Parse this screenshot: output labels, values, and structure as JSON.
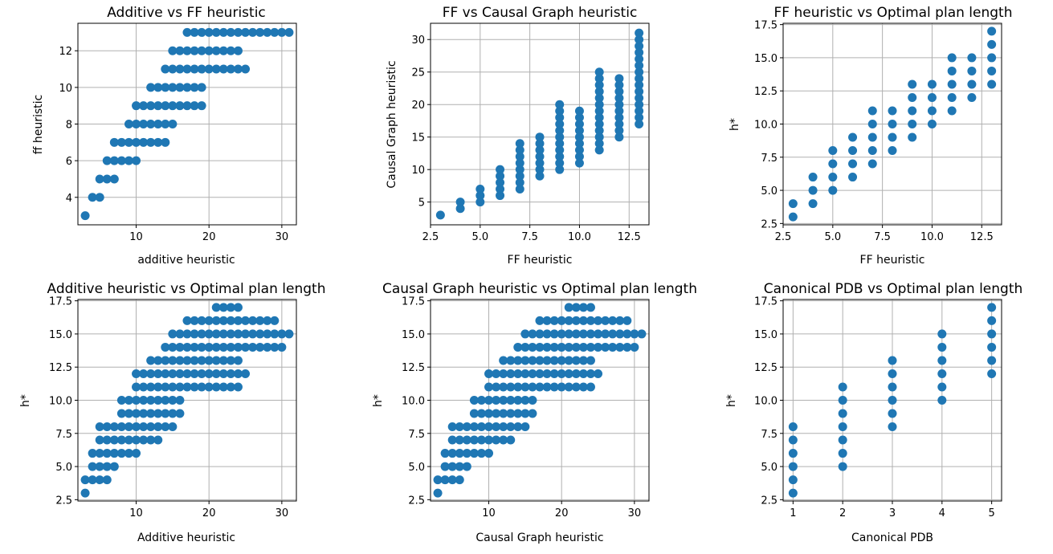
{
  "figure": {
    "marker_color": "#1f77b4",
    "grid_color": "#b0b0b0",
    "grid": true
  },
  "chart_data": [
    {
      "type": "scatter",
      "title": "Additive vs FF heuristic",
      "xlabel": "additive heuristic",
      "ylabel": "ff heuristic",
      "xlim": [
        2,
        32
      ],
      "ylim": [
        2.5,
        13.5
      ],
      "xticks": [
        10,
        20,
        30
      ],
      "yticks": [
        4,
        6,
        8,
        10,
        12
      ],
      "points_by_y": [
        {
          "y": 3,
          "x_min": 3,
          "x_max": 3
        },
        {
          "y": 4,
          "x_min": 4,
          "x_max": 5
        },
        {
          "y": 5,
          "x_min": 5,
          "x_max": 7
        },
        {
          "y": 6,
          "x_min": 6,
          "x_max": 10
        },
        {
          "y": 7,
          "x_min": 7,
          "x_max": 14
        },
        {
          "y": 8,
          "x_min": 9,
          "x_max": 15
        },
        {
          "y": 9,
          "x_min": 10,
          "x_max": 19
        },
        {
          "y": 10,
          "x_min": 12,
          "x_max": 19
        },
        {
          "y": 11,
          "x_min": 14,
          "x_max": 25
        },
        {
          "y": 12,
          "x_min": 15,
          "x_max": 24
        },
        {
          "y": 13,
          "x_min": 17,
          "x_max": 31
        }
      ]
    },
    {
      "type": "scatter",
      "title": "FF vs Causal Graph heuristic",
      "xlabel": "FF heuristic",
      "ylabel": "Causal Graph heuristic",
      "xlim": [
        2.5,
        13.5
      ],
      "ylim": [
        1.5,
        32.5
      ],
      "xticks": [
        2.5,
        5.0,
        7.5,
        10.0,
        12.5
      ],
      "yticks": [
        5,
        10,
        15,
        20,
        25,
        30
      ],
      "points_by_x": [
        {
          "x": 3,
          "y_min": 3,
          "y_max": 3
        },
        {
          "x": 4,
          "y_min": 4,
          "y_max": 5
        },
        {
          "x": 5,
          "y_min": 5,
          "y_max": 7
        },
        {
          "x": 6,
          "y_min": 6,
          "y_max": 10
        },
        {
          "x": 7,
          "y_min": 7,
          "y_max": 14
        },
        {
          "x": 8,
          "y_min": 9,
          "y_max": 15
        },
        {
          "x": 9,
          "y_min": 10,
          "y_max": 20
        },
        {
          "x": 10,
          "y_min": 11,
          "y_max": 19
        },
        {
          "x": 11,
          "y_min": 13,
          "y_max": 25
        },
        {
          "x": 12,
          "y_min": 15,
          "y_max": 24
        },
        {
          "x": 13,
          "y_min": 17,
          "y_max": 31
        }
      ]
    },
    {
      "type": "scatter",
      "title": "FF heuristic vs Optimal plan length",
      "xlabel": "FF heuristic",
      "ylabel": "h*",
      "xlim": [
        2.5,
        13.5
      ],
      "ylim": [
        2.4,
        17.6
      ],
      "xticks": [
        2.5,
        5.0,
        7.5,
        10.0,
        12.5
      ],
      "yticks": [
        2.5,
        5.0,
        7.5,
        10.0,
        12.5,
        15.0,
        17.5
      ],
      "points_by_x": [
        {
          "x": 3,
          "y_min": 3,
          "y_max": 4
        },
        {
          "x": 4,
          "y_min": 4,
          "y_max": 6
        },
        {
          "x": 5,
          "y_min": 5,
          "y_max": 8
        },
        {
          "x": 6,
          "y_min": 6,
          "y_max": 9
        },
        {
          "x": 7,
          "y_min": 7,
          "y_max": 11
        },
        {
          "x": 8,
          "y_min": 8,
          "y_max": 11
        },
        {
          "x": 9,
          "y_min": 9,
          "y_max": 13
        },
        {
          "x": 10,
          "y_min": 10,
          "y_max": 13
        },
        {
          "x": 11,
          "y_min": 11,
          "y_max": 15
        },
        {
          "x": 12,
          "y_min": 12,
          "y_max": 15
        },
        {
          "x": 13,
          "y_min": 13,
          "y_max": 17
        }
      ]
    },
    {
      "type": "scatter",
      "title": "Additive heuristic vs Optimal plan length",
      "xlabel": "Additive heuristic",
      "ylabel": "h*",
      "xlim": [
        2,
        32
      ],
      "ylim": [
        2.4,
        17.6
      ],
      "xticks": [
        10,
        20,
        30
      ],
      "yticks": [
        2.5,
        5.0,
        7.5,
        10.0,
        12.5,
        15.0,
        17.5
      ],
      "points_by_y": [
        {
          "y": 3,
          "x_min": 3,
          "x_max": 3
        },
        {
          "y": 4,
          "x_min": 3,
          "x_max": 6
        },
        {
          "y": 5,
          "x_min": 4,
          "x_max": 7
        },
        {
          "y": 6,
          "x_min": 4,
          "x_max": 10
        },
        {
          "y": 7,
          "x_min": 5,
          "x_max": 13
        },
        {
          "y": 8,
          "x_min": 5,
          "x_max": 15
        },
        {
          "y": 9,
          "x_min": 8,
          "x_max": 16
        },
        {
          "y": 10,
          "x_min": 8,
          "x_max": 16
        },
        {
          "y": 11,
          "x_min": 10,
          "x_max": 24
        },
        {
          "y": 12,
          "x_min": 10,
          "x_max": 25
        },
        {
          "y": 13,
          "x_min": 12,
          "x_max": 24
        },
        {
          "y": 14,
          "x_min": 14,
          "x_max": 30
        },
        {
          "y": 15,
          "x_min": 15,
          "x_max": 31
        },
        {
          "y": 16,
          "x_min": 17,
          "x_max": 29
        },
        {
          "y": 17,
          "x_min": 21,
          "x_max": 24
        }
      ]
    },
    {
      "type": "scatter",
      "title": "Causal Graph heuristic vs Optimal plan length",
      "xlabel": "Causal Graph heuristic",
      "ylabel": "h*",
      "xlim": [
        2,
        32
      ],
      "ylim": [
        2.4,
        17.6
      ],
      "xticks": [
        10,
        20,
        30
      ],
      "yticks": [
        2.5,
        5.0,
        7.5,
        10.0,
        12.5,
        15.0,
        17.5
      ],
      "points_by_y": [
        {
          "y": 3,
          "x_min": 3,
          "x_max": 3
        },
        {
          "y": 4,
          "x_min": 3,
          "x_max": 6
        },
        {
          "y": 5,
          "x_min": 4,
          "x_max": 7
        },
        {
          "y": 6,
          "x_min": 4,
          "x_max": 10
        },
        {
          "y": 7,
          "x_min": 5,
          "x_max": 13
        },
        {
          "y": 8,
          "x_min": 5,
          "x_max": 15
        },
        {
          "y": 9,
          "x_min": 8,
          "x_max": 16
        },
        {
          "y": 10,
          "x_min": 8,
          "x_max": 16
        },
        {
          "y": 11,
          "x_min": 10,
          "x_max": 24
        },
        {
          "y": 12,
          "x_min": 10,
          "x_max": 25
        },
        {
          "y": 13,
          "x_min": 12,
          "x_max": 24
        },
        {
          "y": 14,
          "x_min": 14,
          "x_max": 30
        },
        {
          "y": 15,
          "x_min": 15,
          "x_max": 31
        },
        {
          "y": 16,
          "x_min": 17,
          "x_max": 29
        },
        {
          "y": 17,
          "x_min": 21,
          "x_max": 24
        }
      ]
    },
    {
      "type": "scatter",
      "title": "Canonical PDB vs Optimal plan length",
      "xlabel": "Canonical PDB",
      "ylabel": "h*",
      "xlim": [
        0.8,
        5.2
      ],
      "ylim": [
        2.4,
        17.6
      ],
      "xticks": [
        1,
        2,
        3,
        4,
        5
      ],
      "yticks": [
        2.5,
        5.0,
        7.5,
        10.0,
        12.5,
        15.0,
        17.5
      ],
      "points_by_x": [
        {
          "x": 1,
          "y_min": 3,
          "y_max": 8
        },
        {
          "x": 2,
          "y_min": 5,
          "y_max": 11
        },
        {
          "x": 3,
          "y_min": 8,
          "y_max": 13
        },
        {
          "x": 4,
          "y_min": 10,
          "y_max": 15
        },
        {
          "x": 5,
          "y_min": 12,
          "y_max": 17
        }
      ]
    }
  ]
}
